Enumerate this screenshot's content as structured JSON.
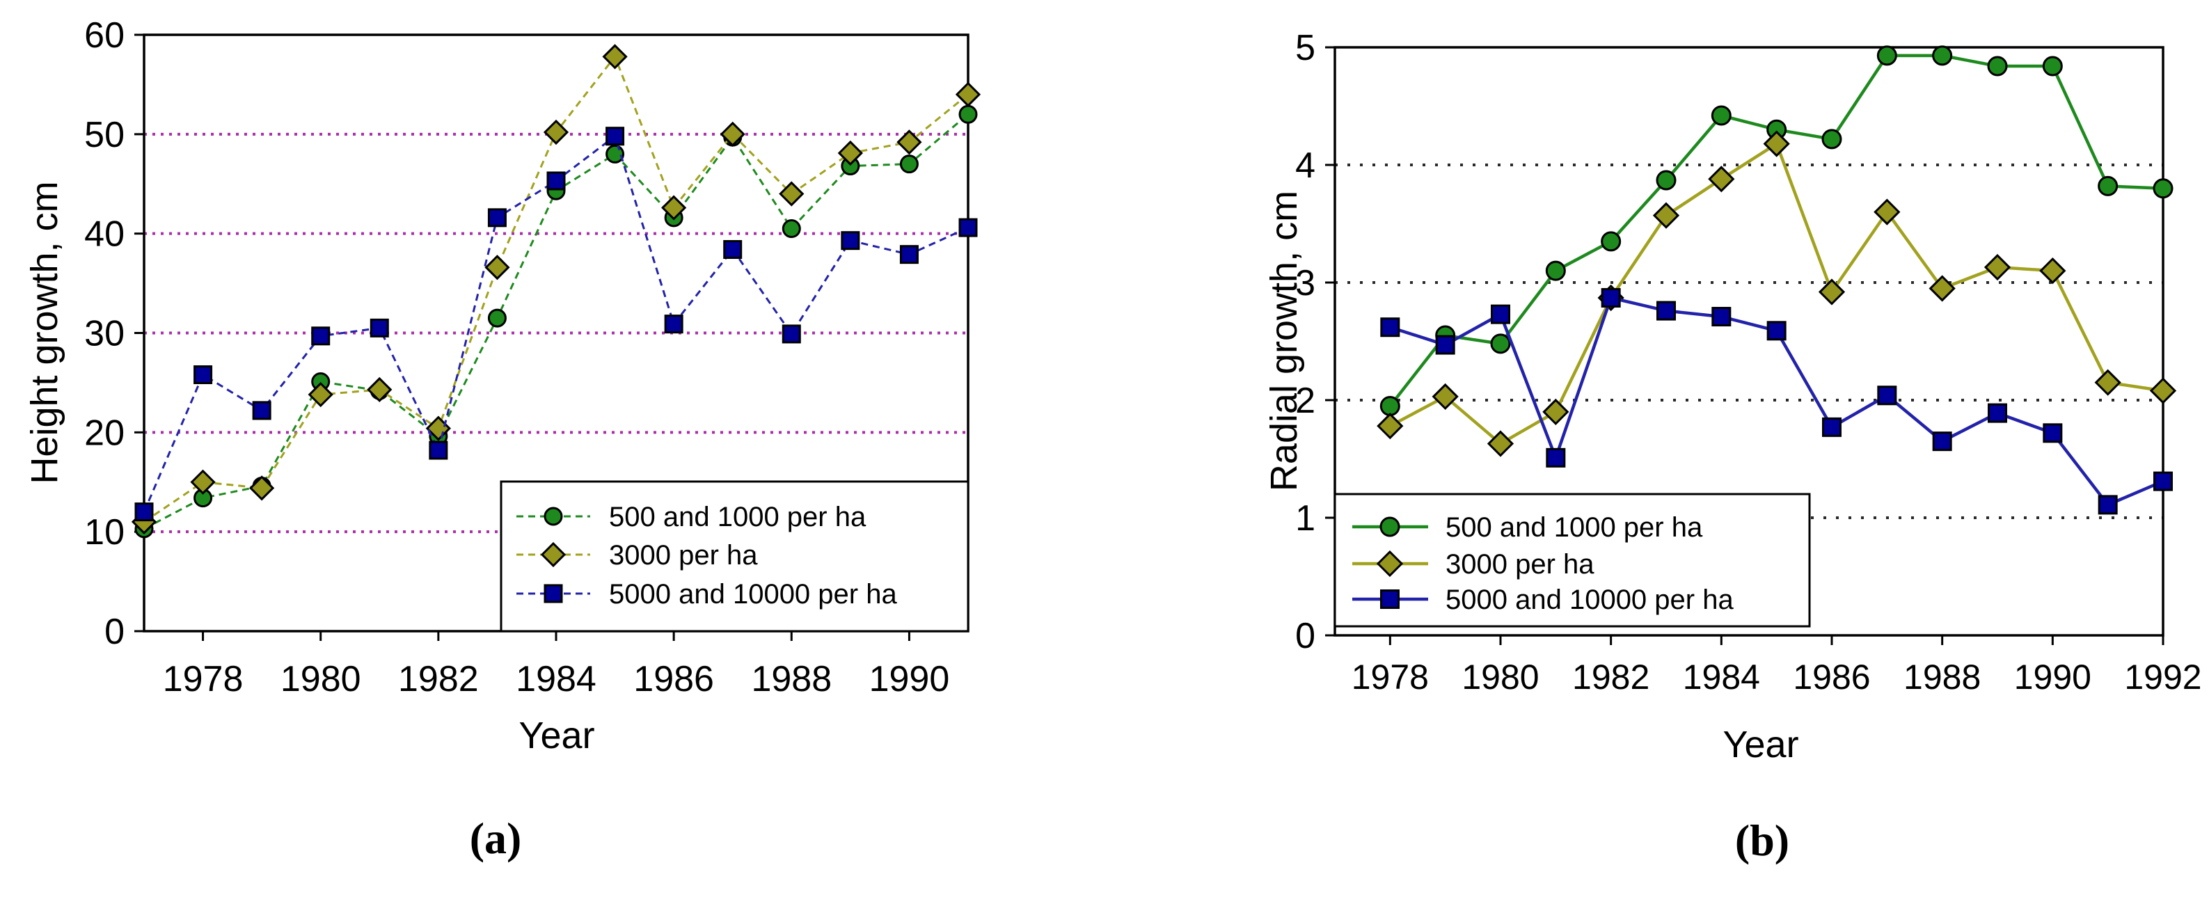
{
  "figure": {
    "kind": "two-panel line figure",
    "background": "#ffffff",
    "text_color": "#000000",
    "axis_color": "#000000"
  },
  "chart_data": [
    {
      "id": "a",
      "type": "line",
      "caption": "(a)",
      "xlabel": "Year",
      "ylabel": "Height growth, cm",
      "xlim": [
        1977,
        1991
      ],
      "ylim": [
        0,
        60
      ],
      "xticks": [
        1978,
        1980,
        1982,
        1984,
        1986,
        1988,
        1990
      ],
      "yticks": [
        0,
        10,
        20,
        30,
        40,
        50,
        60
      ],
      "gridlines_y": [
        10,
        20,
        30,
        40,
        50
      ],
      "grid_color": "#aa2daa",
      "grid_style": "dotted",
      "line_style": "dashed",
      "legend_position": "bottom-right",
      "x": [
        1977,
        1978,
        1979,
        1980,
        1981,
        1982,
        1983,
        1984,
        1985,
        1986,
        1987,
        1988,
        1989,
        1990,
        1991
      ],
      "series": [
        {
          "name": "500 and 1000 per ha",
          "marker": "circle",
          "line_color": "#1e8a1e",
          "fill_color": "#1e8a1e",
          "values": [
            10.3,
            13.4,
            14.6,
            25.1,
            24.2,
            19.6,
            31.5,
            44.3,
            48.0,
            41.6,
            49.7,
            40.5,
            46.8,
            47.0,
            52.0
          ]
        },
        {
          "name": "3000 per ha",
          "marker": "diamond",
          "line_color": "#a2a21e",
          "fill_color": "#96961e",
          "values": [
            11.0,
            15.0,
            14.4,
            23.8,
            24.3,
            20.4,
            36.6,
            50.2,
            57.8,
            42.6,
            50.0,
            44.0,
            48.1,
            49.2,
            54.0
          ]
        },
        {
          "name": "5000 and 10000 per ha",
          "marker": "square",
          "line_color": "#2222aa",
          "fill_color": "#000099",
          "values": [
            12.0,
            25.8,
            22.2,
            29.7,
            30.5,
            18.2,
            41.6,
            45.3,
            49.8,
            30.9,
            38.4,
            29.9,
            39.3,
            37.9,
            40.6
          ]
        }
      ]
    },
    {
      "id": "b",
      "type": "line",
      "caption": "(b)",
      "xlabel": "Year",
      "ylabel": "Radial growth, cm",
      "xlim": [
        1977,
        1992
      ],
      "ylim": [
        0,
        5
      ],
      "xticks": [
        1978,
        1980,
        1982,
        1984,
        1986,
        1988,
        1990,
        1992
      ],
      "yticks": [
        0,
        1,
        2,
        3,
        4,
        5
      ],
      "gridlines_y": [
        1,
        2,
        3,
        4
      ],
      "grid_color": "#2a2a2a",
      "grid_style": "dotted",
      "line_style": "solid",
      "legend_position": "bottom-left",
      "x": [
        1978,
        1979,
        1980,
        1981,
        1982,
        1983,
        1984,
        1985,
        1986,
        1987,
        1988,
        1989,
        1990,
        1991,
        1992
      ],
      "series": [
        {
          "name": "500 and 1000 per ha",
          "marker": "circle",
          "line_color": "#1e8a1e",
          "fill_color": "#1e8a1e",
          "values": [
            1.95,
            2.55,
            2.48,
            3.1,
            3.35,
            3.87,
            4.42,
            4.3,
            4.22,
            4.93,
            4.93,
            4.84,
            4.84,
            3.82,
            3.8
          ]
        },
        {
          "name": "3000 per ha",
          "marker": "diamond",
          "line_color": "#a2a21e",
          "fill_color": "#96961e",
          "values": [
            1.78,
            2.03,
            1.63,
            1.9,
            2.87,
            3.57,
            3.88,
            4.18,
            2.92,
            3.6,
            2.95,
            3.13,
            3.1,
            2.15,
            2.08
          ]
        },
        {
          "name": "5000 and 10000 per ha",
          "marker": "square",
          "line_color": "#2222aa",
          "fill_color": "#000099",
          "values": [
            2.62,
            2.47,
            2.73,
            1.51,
            2.87,
            2.76,
            2.71,
            2.59,
            1.77,
            2.04,
            1.65,
            1.89,
            1.72,
            1.11,
            1.31
          ]
        }
      ]
    }
  ]
}
